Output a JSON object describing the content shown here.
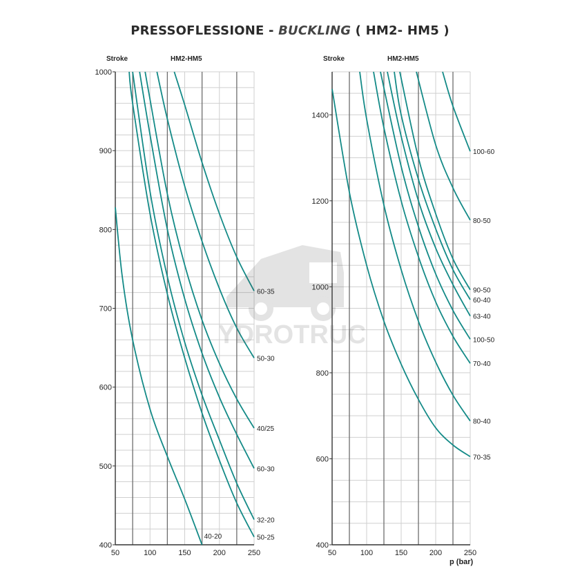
{
  "title": {
    "main": "PRESSOFLESSIONE - ",
    "italic": "BUCKLING",
    "suffix": " ( HM2- HM5 )"
  },
  "watermark": {
    "text": "HYDROTRUCK"
  },
  "colors": {
    "curve": "#138a87",
    "grid_minor": "#cfcfcf",
    "grid_major": "#6d6d6d",
    "axis": "#333333"
  },
  "chart_data": [
    {
      "type": "line",
      "ylabel": "Stroke",
      "header": "HM2-HM5",
      "xlabel": "",
      "xlim": [
        50,
        250
      ],
      "ylim": [
        400,
        1000
      ],
      "xticks": [
        50,
        100,
        150,
        200,
        250
      ],
      "yticks": [
        400,
        500,
        600,
        700,
        800,
        900,
        1000
      ],
      "grid": true,
      "series": [
        {
          "name": "60-35",
          "x": [
            135,
            150,
            175,
            200,
            225,
            250
          ],
          "y": [
            1000,
            958,
            885,
            820,
            765,
            722
          ]
        },
        {
          "name": "50-30",
          "x": [
            110,
            125,
            150,
            175,
            200,
            225,
            250
          ],
          "y": [
            1000,
            940,
            855,
            785,
            725,
            675,
            637
          ]
        },
        {
          "name": "40/25",
          "x": [
            93,
            100,
            125,
            150,
            175,
            200,
            225,
            250
          ],
          "y": [
            1000,
            965,
            845,
            755,
            685,
            630,
            585,
            548
          ]
        },
        {
          "name": "60-30",
          "x": [
            85,
            100,
            125,
            150,
            175,
            200,
            225,
            250
          ],
          "y": [
            1000,
            920,
            800,
            712,
            643,
            587,
            540,
            497
          ]
        },
        {
          "name": "32-20",
          "x": [
            75,
            100,
            125,
            150,
            175,
            200,
            225,
            250
          ],
          "y": [
            1000,
            848,
            740,
            657,
            590,
            533,
            478,
            432
          ]
        },
        {
          "name": "50-25",
          "x": [
            70,
            75,
            100,
            125,
            150,
            175,
            200,
            225,
            250
          ],
          "y": [
            1000,
            960,
            820,
            718,
            637,
            567,
            507,
            453,
            410
          ]
        },
        {
          "name": "40-20",
          "x": [
            50,
            60,
            75,
            100,
            125,
            150,
            175
          ],
          "y": [
            828,
            740,
            660,
            572,
            512,
            458,
            400
          ]
        }
      ]
    },
    {
      "type": "line",
      "ylabel": "Stroke",
      "header": "HM2-HM5",
      "xlabel": "p (bar)",
      "xlim": [
        50,
        250
      ],
      "ylim": [
        400,
        1500
      ],
      "xticks": [
        50,
        100,
        150,
        200,
        250
      ],
      "yticks": [
        400,
        600,
        800,
        1000,
        1200,
        1400
      ],
      "grid": true,
      "series": [
        {
          "name": "100-60",
          "x": [
            210,
            225,
            250
          ],
          "y": [
            1500,
            1420,
            1315
          ]
        },
        {
          "name": "80-50",
          "x": [
            172,
            200,
            225,
            250
          ],
          "y": [
            1500,
            1330,
            1230,
            1155
          ]
        },
        {
          "name": "90-50",
          "x": [
            148,
            175,
            200,
            225,
            250
          ],
          "y": [
            1500,
            1300,
            1170,
            1065,
            993
          ]
        },
        {
          "name": "60-40",
          "x": [
            140,
            150,
            175,
            200,
            225,
            250
          ],
          "y": [
            1500,
            1400,
            1250,
            1135,
            1040,
            970
          ]
        },
        {
          "name": "63-40",
          "x": [
            130,
            150,
            175,
            200,
            225,
            250
          ],
          "y": [
            1500,
            1350,
            1200,
            1090,
            1005,
            932
          ]
        },
        {
          "name": "100-50",
          "x": [
            120,
            150,
            175,
            200,
            225,
            250
          ],
          "y": [
            1500,
            1280,
            1140,
            1030,
            945,
            878
          ]
        },
        {
          "name": "70-40",
          "x": [
            110,
            125,
            150,
            175,
            200,
            225,
            250
          ],
          "y": [
            1500,
            1370,
            1200,
            1070,
            965,
            885,
            822
          ]
        },
        {
          "name": "80-40",
          "x": [
            90,
            100,
            125,
            150,
            175,
            200,
            225,
            250
          ],
          "y": [
            1500,
            1390,
            1190,
            1040,
            920,
            825,
            748,
            688
          ]
        },
        {
          "name": "70-35",
          "x": [
            50,
            75,
            100,
            125,
            150,
            175,
            200,
            225,
            250
          ],
          "y": [
            1460,
            1220,
            1050,
            920,
            820,
            738,
            672,
            632,
            605
          ]
        }
      ]
    }
  ]
}
